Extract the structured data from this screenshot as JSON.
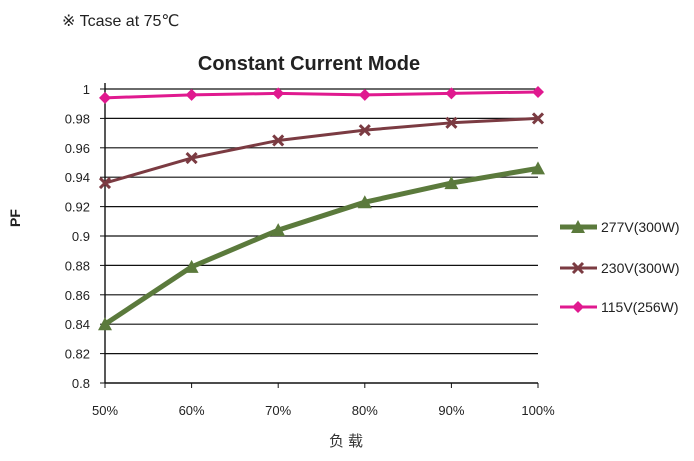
{
  "note": "※ Tcase at 75℃",
  "chart_data": {
    "type": "line",
    "title": "Constant Current Mode",
    "xlabel": "负载",
    "ylabel": "PF",
    "categories": [
      "50%",
      "60%",
      "70%",
      "80%",
      "90%",
      "100%"
    ],
    "ylim": [
      0.8,
      1.0
    ],
    "yticks": [
      "0.8",
      "0.82",
      "0.84",
      "0.86",
      "0.88",
      "0.9",
      "0.92",
      "0.94",
      "0.96",
      "0.98",
      "1"
    ],
    "grid": true,
    "legend_position": "right",
    "series": [
      {
        "name": "277V(300W)",
        "color": "#5b7a3c",
        "marker": "triangle",
        "values": [
          0.84,
          0.879,
          0.904,
          0.923,
          0.936,
          0.946
        ]
      },
      {
        "name": "230V(300W)",
        "color": "#7b3b42",
        "marker": "x",
        "values": [
          0.936,
          0.953,
          0.965,
          0.972,
          0.977,
          0.98
        ]
      },
      {
        "name": "115V(256W)",
        "color": "#e0198f",
        "marker": "diamond",
        "values": [
          0.994,
          0.996,
          0.997,
          0.996,
          0.997,
          0.998
        ]
      }
    ]
  }
}
